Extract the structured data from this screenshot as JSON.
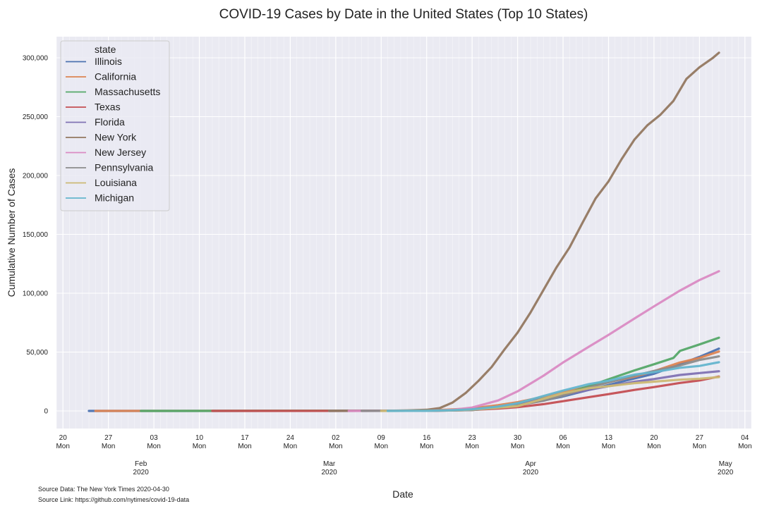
{
  "chart_data": {
    "type": "line",
    "title": "COVID-19 Cases by Date in the United States (Top 10 States)",
    "xlabel": "Date",
    "ylabel": "Cumulative Number of Cases",
    "ylim": [
      -15000,
      318000
    ],
    "xlim": [
      "2020-01-19",
      "2020-05-05"
    ],
    "y_ticks": [
      0,
      50000,
      100000,
      150000,
      200000,
      250000,
      300000
    ],
    "y_tick_labels": [
      "0",
      "50,000",
      "100,000",
      "150,000",
      "200,000",
      "250,000",
      "300,000"
    ],
    "x_ticks": [
      {
        "date": "2020-01-20",
        "day": "20",
        "weekday": "Mon"
      },
      {
        "date": "2020-01-27",
        "day": "27",
        "weekday": "Mon"
      },
      {
        "date": "2020-02-03",
        "day": "03",
        "weekday": "Mon"
      },
      {
        "date": "2020-02-10",
        "day": "10",
        "weekday": "Mon"
      },
      {
        "date": "2020-02-17",
        "day": "17",
        "weekday": "Mon"
      },
      {
        "date": "2020-02-24",
        "day": "24",
        "weekday": "Mon"
      },
      {
        "date": "2020-03-02",
        "day": "02",
        "weekday": "Mon"
      },
      {
        "date": "2020-03-09",
        "day": "09",
        "weekday": "Mon"
      },
      {
        "date": "2020-03-16",
        "day": "16",
        "weekday": "Mon"
      },
      {
        "date": "2020-03-23",
        "day": "23",
        "weekday": "Mon"
      },
      {
        "date": "2020-03-30",
        "day": "30",
        "weekday": "Mon"
      },
      {
        "date": "2020-04-06",
        "day": "06",
        "weekday": "Mon"
      },
      {
        "date": "2020-04-13",
        "day": "13",
        "weekday": "Mon"
      },
      {
        "date": "2020-04-20",
        "day": "20",
        "weekday": "Mon"
      },
      {
        "date": "2020-04-27",
        "day": "27",
        "weekday": "Mon"
      },
      {
        "date": "2020-05-04",
        "day": "04",
        "weekday": "Mon"
      }
    ],
    "month_ticks": [
      {
        "date": "2020-02-01",
        "month": "Feb",
        "year": "2020"
      },
      {
        "date": "2020-03-01",
        "month": "Mar",
        "year": "2020"
      },
      {
        "date": "2020-04-01",
        "month": "Apr",
        "year": "2020"
      },
      {
        "date": "2020-05-01",
        "month": "May",
        "year": "2020"
      }
    ],
    "legend_title": "state",
    "legend_position": "top-left",
    "grid": true,
    "series": [
      {
        "name": "Illinois",
        "color": "#4c72b0",
        "start": "2020-01-24",
        "points": [
          [
            "2020-01-24",
            1
          ],
          [
            "2020-03-10",
            19
          ],
          [
            "2020-03-17",
            160
          ],
          [
            "2020-03-20",
            585
          ],
          [
            "2020-03-23",
            1285
          ],
          [
            "2020-03-27",
            3026
          ],
          [
            "2020-03-30",
            5057
          ],
          [
            "2020-04-03",
            8904
          ],
          [
            "2020-04-06",
            12262
          ],
          [
            "2020-04-10",
            17887
          ],
          [
            "2020-04-13",
            22025
          ],
          [
            "2020-04-17",
            27575
          ],
          [
            "2020-04-20",
            31508
          ],
          [
            "2020-04-24",
            39658
          ],
          [
            "2020-04-27",
            45883
          ],
          [
            "2020-04-30",
            52918
          ]
        ]
      },
      {
        "name": "California",
        "color": "#dd8452",
        "start": "2020-01-25",
        "points": [
          [
            "2020-01-25",
            1
          ],
          [
            "2020-03-10",
            157
          ],
          [
            "2020-03-16",
            472
          ],
          [
            "2020-03-20",
            1224
          ],
          [
            "2020-03-23",
            2108
          ],
          [
            "2020-03-27",
            4914
          ],
          [
            "2020-03-30",
            7426
          ],
          [
            "2020-04-03",
            12004
          ],
          [
            "2020-04-06",
            16019
          ],
          [
            "2020-04-10",
            20615
          ],
          [
            "2020-04-13",
            24394
          ],
          [
            "2020-04-17",
            29157
          ],
          [
            "2020-04-20",
            33686
          ],
          [
            "2020-04-24",
            41137
          ],
          [
            "2020-04-27",
            45031
          ],
          [
            "2020-04-30",
            50442
          ]
        ]
      },
      {
        "name": "Massachusetts",
        "color": "#55a868",
        "start": "2020-02-01",
        "points": [
          [
            "2020-02-01",
            1
          ],
          [
            "2020-03-10",
            92
          ],
          [
            "2020-03-16",
            197
          ],
          [
            "2020-03-20",
            413
          ],
          [
            "2020-03-23",
            777
          ],
          [
            "2020-03-27",
            3240
          ],
          [
            "2020-03-30",
            5752
          ],
          [
            "2020-04-03",
            10402
          ],
          [
            "2020-04-06",
            13837
          ],
          [
            "2020-04-10",
            20974
          ],
          [
            "2020-04-13",
            26867
          ],
          [
            "2020-04-17",
            34402
          ],
          [
            "2020-04-20",
            39643
          ],
          [
            "2020-04-23",
            45000
          ],
          [
            "2020-04-24",
            50969
          ],
          [
            "2020-04-27",
            56462
          ],
          [
            "2020-04-30",
            62205
          ]
        ]
      },
      {
        "name": "Texas",
        "color": "#c44e52",
        "start": "2020-02-12",
        "points": [
          [
            "2020-02-12",
            1
          ],
          [
            "2020-03-10",
            15
          ],
          [
            "2020-03-17",
            110
          ],
          [
            "2020-03-20",
            396
          ],
          [
            "2020-03-23",
            758
          ],
          [
            "2020-03-27",
            1939
          ],
          [
            "2020-03-30",
            3147
          ],
          [
            "2020-04-03",
            5734
          ],
          [
            "2020-04-06",
            8215
          ],
          [
            "2020-04-10",
            11724
          ],
          [
            "2020-04-13",
            14211
          ],
          [
            "2020-04-17",
            17827
          ],
          [
            "2020-04-20",
            20224
          ],
          [
            "2020-04-24",
            23773
          ],
          [
            "2020-04-27",
            25859
          ],
          [
            "2020-04-30",
            29229
          ]
        ]
      },
      {
        "name": "Florida",
        "color": "#8172b3",
        "start": "2020-03-01",
        "points": [
          [
            "2020-03-01",
            2
          ],
          [
            "2020-03-10",
            28
          ],
          [
            "2020-03-16",
            160
          ],
          [
            "2020-03-20",
            563
          ],
          [
            "2020-03-23",
            1412
          ],
          [
            "2020-03-27",
            2900
          ],
          [
            "2020-03-30",
            5704
          ],
          [
            "2020-04-03",
            10268
          ],
          [
            "2020-04-06",
            13629
          ],
          [
            "2020-04-10",
            17968
          ],
          [
            "2020-04-13",
            21019
          ],
          [
            "2020-04-17",
            24753
          ],
          [
            "2020-04-20",
            27058
          ],
          [
            "2020-04-24",
            30533
          ],
          [
            "2020-04-27",
            32138
          ],
          [
            "2020-04-30",
            33690
          ]
        ]
      },
      {
        "name": "New York",
        "color": "#937860",
        "start": "2020-03-01",
        "points": [
          [
            "2020-03-01",
            1
          ],
          [
            "2020-03-10",
            173
          ],
          [
            "2020-03-13",
            421
          ],
          [
            "2020-03-16",
            950
          ],
          [
            "2020-03-18",
            2382
          ],
          [
            "2020-03-20",
            7102
          ],
          [
            "2020-03-22",
            15168
          ],
          [
            "2020-03-24",
            25665
          ],
          [
            "2020-03-26",
            37258
          ],
          [
            "2020-03-28",
            52318
          ],
          [
            "2020-03-30",
            66497
          ],
          [
            "2020-04-01",
            83712
          ],
          [
            "2020-04-03",
            102863
          ],
          [
            "2020-04-05",
            122031
          ],
          [
            "2020-04-07",
            138863
          ],
          [
            "2020-04-09",
            159937
          ],
          [
            "2020-04-11",
            180458
          ],
          [
            "2020-04-13",
            195031
          ],
          [
            "2020-04-15",
            213779
          ],
          [
            "2020-04-17",
            230597
          ],
          [
            "2020-04-19",
            242786
          ],
          [
            "2020-04-21",
            251690
          ],
          [
            "2020-04-23",
            263460
          ],
          [
            "2020-04-25",
            282143
          ],
          [
            "2020-04-27",
            291996
          ],
          [
            "2020-04-29",
            299691
          ],
          [
            "2020-04-30",
            304372
          ]
        ]
      },
      {
        "name": "New Jersey",
        "color": "#da8bc3",
        "start": "2020-03-04",
        "points": [
          [
            "2020-03-04",
            1
          ],
          [
            "2020-03-10",
            15
          ],
          [
            "2020-03-16",
            178
          ],
          [
            "2020-03-20",
            890
          ],
          [
            "2020-03-23",
            2844
          ],
          [
            "2020-03-27",
            8825
          ],
          [
            "2020-03-30",
            16636
          ],
          [
            "2020-04-03",
            29895
          ],
          [
            "2020-04-06",
            41090
          ],
          [
            "2020-04-10",
            54588
          ],
          [
            "2020-04-13",
            64584
          ],
          [
            "2020-04-17",
            78467
          ],
          [
            "2020-04-20",
            88806
          ],
          [
            "2020-04-24",
            102196
          ],
          [
            "2020-04-27",
            111188
          ],
          [
            "2020-04-30",
            118652
          ]
        ]
      },
      {
        "name": "Pennsylvania",
        "color": "#8c8c8c",
        "start": "2020-03-06",
        "points": [
          [
            "2020-03-06",
            2
          ],
          [
            "2020-03-10",
            12
          ],
          [
            "2020-03-16",
            76
          ],
          [
            "2020-03-20",
            371
          ],
          [
            "2020-03-23",
            698
          ],
          [
            "2020-03-27",
            2751
          ],
          [
            "2020-03-30",
            4843
          ],
          [
            "2020-04-03",
            8570
          ],
          [
            "2020-04-06",
            12980
          ],
          [
            "2020-04-10",
            19979
          ],
          [
            "2020-04-13",
            24292
          ],
          [
            "2020-04-17",
            29888
          ],
          [
            "2020-04-20",
            33914
          ],
          [
            "2020-04-24",
            38652
          ],
          [
            "2020-04-27",
            43264
          ],
          [
            "2020-04-30",
            46327
          ]
        ]
      },
      {
        "name": "Louisiana",
        "color": "#ccb974",
        "start": "2020-03-09",
        "points": [
          [
            "2020-03-09",
            1
          ],
          [
            "2020-03-13",
            33
          ],
          [
            "2020-03-16",
            136
          ],
          [
            "2020-03-20",
            537
          ],
          [
            "2020-03-23",
            1172
          ],
          [
            "2020-03-27",
            2746
          ],
          [
            "2020-03-30",
            4025
          ],
          [
            "2020-04-03",
            10297
          ],
          [
            "2020-04-06",
            14867
          ],
          [
            "2020-04-10",
            19253
          ],
          [
            "2020-04-13",
            21016
          ],
          [
            "2020-04-17",
            23580
          ],
          [
            "2020-04-20",
            24854
          ],
          [
            "2020-04-24",
            26512
          ],
          [
            "2020-04-27",
            27286
          ],
          [
            "2020-04-30",
            28711
          ]
        ]
      },
      {
        "name": "Michigan",
        "color": "#64b5cd",
        "start": "2020-03-10",
        "points": [
          [
            "2020-03-10",
            2
          ],
          [
            "2020-03-13",
            25
          ],
          [
            "2020-03-16",
            53
          ],
          [
            "2020-03-20",
            549
          ],
          [
            "2020-03-23",
            1328
          ],
          [
            "2020-03-27",
            3657
          ],
          [
            "2020-03-30",
            6498
          ],
          [
            "2020-04-03",
            12670
          ],
          [
            "2020-04-06",
            17221
          ],
          [
            "2020-04-10",
            22783
          ],
          [
            "2020-04-13",
            25635
          ],
          [
            "2020-04-17",
            30791
          ],
          [
            "2020-04-20",
            32967
          ],
          [
            "2020-04-24",
            36641
          ],
          [
            "2020-04-27",
            38210
          ],
          [
            "2020-04-30",
            41379
          ]
        ]
      }
    ]
  },
  "notes": {
    "source_data": "Source Data: The New York Times 2020-04-30",
    "source_link": "Source Link: https://github.com/nytimes/covid-19-data"
  }
}
